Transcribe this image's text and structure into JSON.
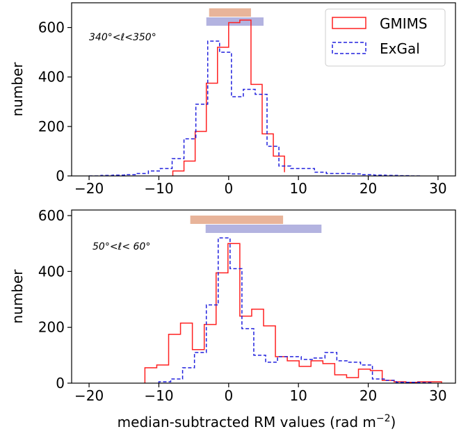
{
  "chart_data": [
    {
      "type": "histogram",
      "title": "",
      "xlabel": "",
      "ylabel": "number",
      "annotation": "340°<ℓ<350°",
      "xlim": [
        -22.5,
        32.5
      ],
      "ylim": [
        0,
        700
      ],
      "xticks": [
        -20,
        -10,
        0,
        10,
        20,
        30
      ],
      "yticks": [
        0,
        200,
        400,
        600
      ],
      "legend": {
        "placement": "top-right",
        "entries": [
          "GMIMS",
          "ExGal"
        ]
      },
      "series": [
        {
          "name": "GMIMS",
          "style": "solid",
          "color": "#ff2020",
          "edges": [
            -8,
            -6.4,
            -4.8,
            -3.2,
            -1.6,
            0,
            1.6,
            3.2,
            4.8,
            6.4,
            8
          ],
          "values": [
            20,
            60,
            180,
            375,
            520,
            620,
            630,
            370,
            170,
            80,
            15
          ]
        },
        {
          "name": "ExGal",
          "style": "dashed",
          "color": "#2020dd",
          "edges": [
            -20,
            -18.3,
            -16.6,
            -14.9,
            -13.2,
            -11.5,
            -9.8,
            -8.1,
            -6.4,
            -4.7,
            -3.0,
            -1.3,
            0.4,
            2.1,
            3.8,
            5.5,
            7.2,
            8.9,
            10.6,
            12.3,
            14.0,
            15.7,
            17.4,
            19.1,
            20.8,
            22.5,
            24.2,
            25.9,
            27.6
          ],
          "values": [
            0,
            2,
            3,
            5,
            10,
            20,
            30,
            70,
            150,
            290,
            545,
            500,
            320,
            350,
            330,
            120,
            40,
            30,
            30,
            15,
            10,
            10,
            8,
            5,
            3,
            2,
            1,
            0
          ]
        }
      ],
      "range_bars": [
        {
          "name": "GMIMS",
          "color": "#e8b49a",
          "xmin": -2.8,
          "xmax": 3.2,
          "level": "upper"
        },
        {
          "name": "ExGal",
          "color": "#b3b3e0",
          "xmin": -3.2,
          "xmax": 5.0,
          "level": "lower"
        }
      ]
    },
    {
      "type": "histogram",
      "title": "",
      "xlabel": "median-subtracted RM values (rad m",
      "xlabel_sup": "−2",
      "xlabel_end": ")",
      "ylabel": "number",
      "annotation": "50°<ℓ< 60°",
      "xlim": [
        -22.5,
        32.5
      ],
      "ylim": [
        0,
        620
      ],
      "xticks": [
        -20,
        -10,
        0,
        10,
        20,
        30
      ],
      "yticks": [
        0,
        200,
        400,
        600
      ],
      "series": [
        {
          "name": "GMIMS",
          "style": "solid",
          "color": "#ff2020",
          "edges": [
            -12,
            -10.3,
            -8.6,
            -6.9,
            -5.2,
            -3.5,
            -1.8,
            -0.1,
            1.6,
            3.3,
            5.0,
            6.7,
            8.4,
            10.1,
            11.8,
            13.5,
            15.2,
            16.9,
            18.6,
            20.3,
            22.0,
            23.7,
            25.4,
            27.1,
            28.8,
            30.5
          ],
          "values": [
            55,
            65,
            175,
            215,
            120,
            210,
            395,
            500,
            240,
            265,
            205,
            95,
            80,
            60,
            80,
            70,
            30,
            20,
            50,
            45,
            10,
            5,
            3,
            5,
            5
          ]
        },
        {
          "name": "ExGal",
          "style": "dashed",
          "color": "#2020dd",
          "edges": [
            -10,
            -8.3,
            -6.6,
            -4.9,
            -3.2,
            -1.5,
            0.2,
            1.9,
            3.6,
            5.3,
            7.0,
            8.7,
            10.4,
            12.1,
            13.8,
            15.5,
            17.2,
            18.9,
            20.6,
            22.3,
            24.0,
            25.7,
            27.4,
            29.1
          ],
          "values": [
            5,
            15,
            55,
            110,
            280,
            520,
            410,
            195,
            100,
            75,
            95,
            95,
            85,
            90,
            110,
            80,
            75,
            65,
            15,
            10,
            3,
            3,
            2
          ]
        }
      ],
      "range_bars": [
        {
          "name": "GMIMS",
          "color": "#e8b49a",
          "xmin": -5.5,
          "xmax": 7.8,
          "level": "upper"
        },
        {
          "name": "ExGal",
          "color": "#b3b3e0",
          "xmin": -3.3,
          "xmax": 13.3,
          "level": "lower"
        }
      ]
    }
  ]
}
